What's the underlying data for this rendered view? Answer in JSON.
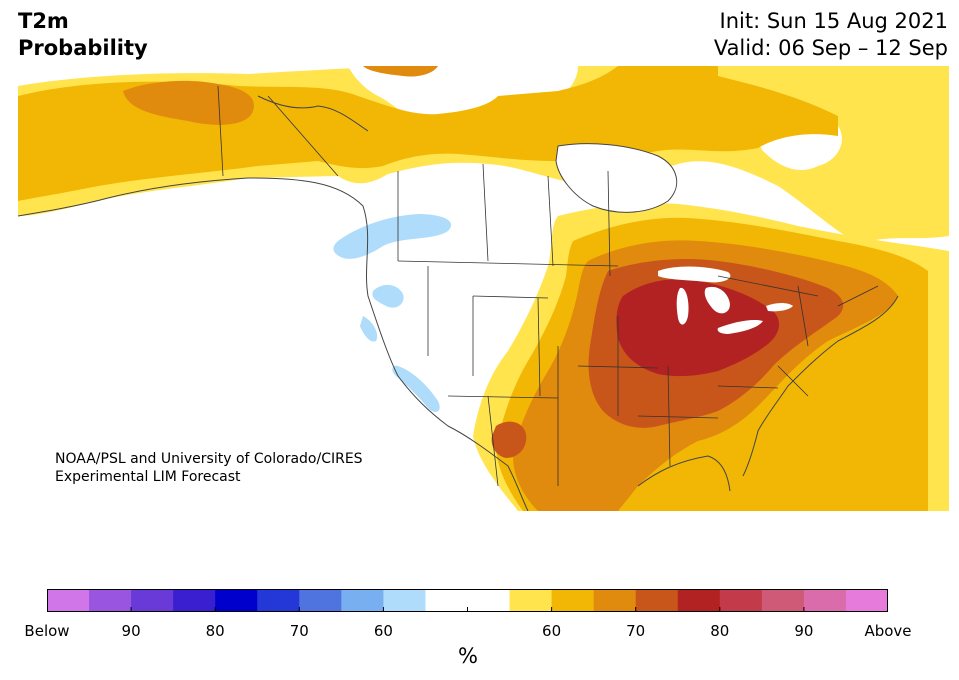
{
  "title": {
    "line1": "T2m",
    "line2": "Probability"
  },
  "valid_info": {
    "init": "Init: Sun 15 Aug 2021",
    "valid": "Valid: 06 Sep – 12 Sep"
  },
  "credit": {
    "line1": "NOAA/PSL and University of Colorado/CIRES",
    "line2": "Experimental LIM Forecast"
  },
  "colors": {
    "below": [
      "#d176e8",
      "#9a55e0",
      "#6a3ad8",
      "#3a1fd0",
      "#0000cc",
      "#2438d8",
      "#4f74e0",
      "#78aff0",
      "#aedcfa"
    ],
    "neutral": [
      "#ffffff",
      "#ffffff"
    ],
    "above": [
      "#ffe44d",
      "#f2b705",
      "#e08a0e",
      "#c8561a",
      "#b22222",
      "#c33a4a",
      "#cf5a78",
      "#db6cab",
      "#e67bdc"
    ],
    "land_neutral": "#ffffff",
    "border": "#333333"
  },
  "colorbar": {
    "unit": "%",
    "tick_labels": [
      "Below",
      "90",
      "80",
      "70",
      "60",
      "",
      "60",
      "70",
      "80",
      "90",
      "Above"
    ]
  }
}
